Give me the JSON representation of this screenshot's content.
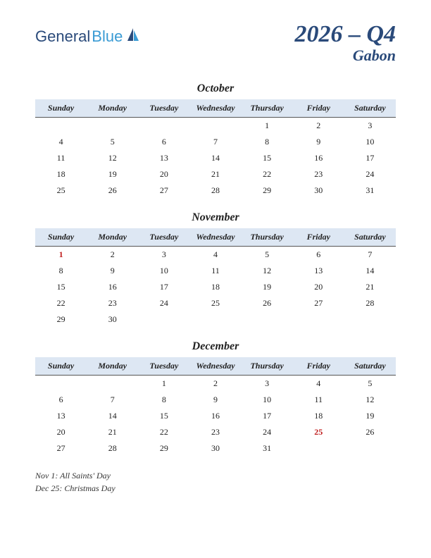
{
  "logo": {
    "part1": "General",
    "part2": "Blue"
  },
  "title": "2026 – Q4",
  "country": "Gabon",
  "colors": {
    "header_bg": "#dde7f3",
    "holiday": "#c02020",
    "brand_dark": "#2a4a7a",
    "brand_light": "#3a9bd4"
  },
  "day_headers": [
    "Sunday",
    "Monday",
    "Tuesday",
    "Wednesday",
    "Thursday",
    "Friday",
    "Saturday"
  ],
  "months": [
    {
      "name": "October",
      "weeks": [
        [
          "",
          "",
          "",
          "",
          "1",
          "2",
          "3"
        ],
        [
          "4",
          "5",
          "6",
          "7",
          "8",
          "9",
          "10"
        ],
        [
          "11",
          "12",
          "13",
          "14",
          "15",
          "16",
          "17"
        ],
        [
          "18",
          "19",
          "20",
          "21",
          "22",
          "23",
          "24"
        ],
        [
          "25",
          "26",
          "27",
          "28",
          "29",
          "30",
          "31"
        ]
      ],
      "holidays": []
    },
    {
      "name": "November",
      "weeks": [
        [
          "1",
          "2",
          "3",
          "4",
          "5",
          "6",
          "7"
        ],
        [
          "8",
          "9",
          "10",
          "11",
          "12",
          "13",
          "14"
        ],
        [
          "15",
          "16",
          "17",
          "18",
          "19",
          "20",
          "21"
        ],
        [
          "22",
          "23",
          "24",
          "25",
          "26",
          "27",
          "28"
        ],
        [
          "29",
          "30",
          "",
          "",
          "",
          "",
          ""
        ]
      ],
      "holidays": [
        "1"
      ]
    },
    {
      "name": "December",
      "weeks": [
        [
          "",
          "",
          "1",
          "2",
          "3",
          "4",
          "5"
        ],
        [
          "6",
          "7",
          "8",
          "9",
          "10",
          "11",
          "12"
        ],
        [
          "13",
          "14",
          "15",
          "16",
          "17",
          "18",
          "19"
        ],
        [
          "20",
          "21",
          "22",
          "23",
          "24",
          "25",
          "26"
        ],
        [
          "27",
          "28",
          "29",
          "30",
          "31",
          "",
          ""
        ]
      ],
      "holidays": [
        "25"
      ]
    }
  ],
  "notes": [
    "Nov 1: All Saints' Day",
    "Dec 25: Christmas Day"
  ]
}
